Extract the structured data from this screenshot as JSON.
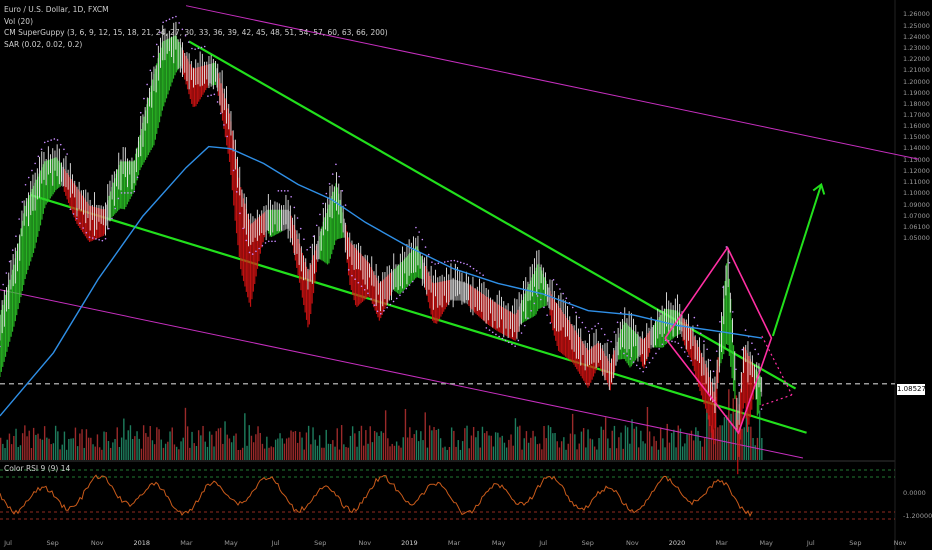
{
  "legend": {
    "symbol": "Euro / U.S. Dollar, 1D, FXCM",
    "indicators": [
      "Vol (20)",
      "CM SuperGuppy (3, 6, 9, 12, 15, 18, 21, 24, 27, 30, 33, 36, 39, 42, 45, 48, 51, 54, 57, 60, 63, 66, 200)",
      "SAR (0.02, 0.02, 0.2)"
    ],
    "oscillator": "Color RSI 9 (9) 14"
  },
  "price_badge": "1.08527",
  "colors": {
    "background": "#000000",
    "trend_green": "#22e01c",
    "channel_magenta": "#c62fbf",
    "ma_blue": "#2f8fe6",
    "diamond_pink": "#ff2fa3",
    "sar_purple": "#c88bff"
  },
  "chart_data": {
    "type": "line",
    "title": "Euro / U.S. Dollar, 1D, FXCM",
    "x_ticks": [
      "Jul",
      "Sep",
      "Nov",
      "2018",
      "Mar",
      "May",
      "Jul",
      "Sep",
      "Nov",
      "2019",
      "Mar",
      "May",
      "Jul",
      "Sep",
      "Nov",
      "2020",
      "Mar",
      "May",
      "Jul",
      "Sep",
      "Nov"
    ],
    "y_ticks": [
      "1.26000",
      "1.25000",
      "1.24000",
      "1.23000",
      "1.22000",
      "1.21000",
      "1.20000",
      "1.19000",
      "1.18000",
      "1.17000",
      "1.16000",
      "1.15000",
      "1.14000",
      "1.13000",
      "1.12000",
      "1.11000",
      "1.10000",
      "1.09000",
      "1.07000",
      "1.06100",
      "1.05000"
    ],
    "ylim": [
      1.05,
      1.262
    ],
    "osc_ticks": [
      "0.0000",
      "-1.20000"
    ],
    "series": [
      {
        "kind": "price",
        "points": [
          [
            "2017-06-20",
            1.115
          ],
          [
            "2017-07-10",
            1.14
          ],
          [
            "2017-07-25",
            1.168
          ],
          [
            "2017-08-20",
            1.188
          ],
          [
            "2017-09-05",
            1.19
          ],
          [
            "2017-10-20",
            1.167
          ],
          [
            "2017-11-10",
            1.165
          ],
          [
            "2017-12-01",
            1.188
          ],
          [
            "2017-12-20",
            1.188
          ],
          [
            "2018-01-15",
            1.228
          ],
          [
            "2018-01-28",
            1.245
          ],
          [
            "2018-02-15",
            1.248
          ],
          [
            "2018-03-10",
            1.232
          ],
          [
            "2018-04-10",
            1.235
          ],
          [
            "2018-04-30",
            1.21
          ],
          [
            "2018-05-15",
            1.175
          ],
          [
            "2018-05-28",
            1.158
          ],
          [
            "2018-06-20",
            1.165
          ],
          [
            "2018-07-20",
            1.165
          ],
          [
            "2018-08-15",
            1.135
          ],
          [
            "2018-09-05",
            1.16
          ],
          [
            "2018-09-22",
            1.178
          ],
          [
            "2018-10-10",
            1.15
          ],
          [
            "2018-11-05",
            1.14
          ],
          [
            "2018-11-20",
            1.13
          ],
          [
            "2018-12-20",
            1.14
          ],
          [
            "2019-01-10",
            1.148
          ],
          [
            "2019-02-01",
            1.13
          ],
          [
            "2019-03-01",
            1.132
          ],
          [
            "2019-03-20",
            1.13
          ],
          [
            "2019-04-10",
            1.125
          ],
          [
            "2019-05-01",
            1.12
          ],
          [
            "2019-05-25",
            1.115
          ],
          [
            "2019-06-25",
            1.14
          ],
          [
            "2019-07-15",
            1.123
          ],
          [
            "2019-08-10",
            1.11
          ],
          [
            "2019-09-01",
            1.098
          ],
          [
            "2019-09-15",
            1.102
          ],
          [
            "2019-10-01",
            1.092
          ],
          [
            "2019-10-20",
            1.112
          ],
          [
            "2019-11-15",
            1.103
          ],
          [
            "2019-12-15",
            1.118
          ],
          [
            "2020-01-01",
            1.117
          ],
          [
            "2020-01-20",
            1.108
          ],
          [
            "2020-02-10",
            1.09
          ],
          [
            "2020-02-20",
            1.078
          ],
          [
            "2020-03-01",
            1.11
          ],
          [
            "2020-03-09",
            1.145
          ],
          [
            "2020-03-15",
            1.115
          ],
          [
            "2020-03-23",
            1.065
          ],
          [
            "2020-04-01",
            1.1
          ],
          [
            "2020-04-15",
            1.09
          ],
          [
            "2020-04-25",
            1.085
          ]
        ]
      },
      {
        "kind": "ma200",
        "name": "",
        "points": [
          [
            "2017-06-20",
            1.07
          ],
          [
            "2017-09-01",
            1.1
          ],
          [
            "2017-11-01",
            1.135
          ],
          [
            "2018-01-01",
            1.165
          ],
          [
            "2018-03-01",
            1.188
          ],
          [
            "2018-04-01",
            1.198
          ],
          [
            "2018-05-01",
            1.197
          ],
          [
            "2018-06-15",
            1.19
          ],
          [
            "2018-08-01",
            1.18
          ],
          [
            "2018-09-15",
            1.173
          ],
          [
            "2018-11-01",
            1.162
          ],
          [
            "2019-01-01",
            1.15
          ],
          [
            "2019-03-01",
            1.14
          ],
          [
            "2019-05-01",
            1.133
          ],
          [
            "2019-07-01",
            1.128
          ],
          [
            "2019-09-01",
            1.12
          ],
          [
            "2019-11-01",
            1.118
          ],
          [
            "2020-01-01",
            1.113
          ],
          [
            "2020-03-01",
            1.11
          ],
          [
            "2020-04-25",
            1.107
          ]
        ]
      }
    ],
    "annotations": [
      {
        "kind": "trendline",
        "color": "trend_green",
        "from": [
          "2018-03-05",
          1.248
        ],
        "to": [
          "2020-06-10",
          1.083
        ]
      },
      {
        "kind": "trendline",
        "color": "trend_green",
        "from": [
          "2017-08-01",
          1.175
        ],
        "to": [
          "2020-06-25",
          1.062
        ]
      },
      {
        "kind": "trendline",
        "color": "channel_magenta",
        "from": [
          "2018-03-01",
          1.265
        ],
        "to": [
          "2020-11-25",
          1.192
        ]
      },
      {
        "kind": "trendline",
        "color": "channel_magenta",
        "from": [
          "2017-06-20",
          1.13
        ],
        "to": [
          "2020-06-20",
          1.05
        ]
      },
      {
        "kind": "diamond",
        "color": "diamond_pink",
        "points": [
          [
            "2020-03-09",
            1.15
          ],
          [
            "2020-05-08",
            1.107
          ],
          [
            "2020-03-24",
            1.062
          ],
          [
            "2019-12-15",
            1.107
          ]
        ]
      },
      {
        "kind": "arrow",
        "color": "trend_green",
        "from": [
          "2020-05-10",
          1.108
        ],
        "to": [
          "2020-07-15",
          1.18
        ]
      },
      {
        "kind": "dotted",
        "color": "diamond_pink",
        "from": [
          "2020-04-25",
          1.108
        ],
        "to": [
          "2020-06-05",
          1.08
        ]
      },
      {
        "kind": "dotted",
        "color": "diamond_pink",
        "from": [
          "2020-04-25",
          1.075
        ],
        "to": [
          "2020-06-05",
          1.08
        ]
      },
      {
        "kind": "hline",
        "value": 1.08527
      }
    ]
  }
}
